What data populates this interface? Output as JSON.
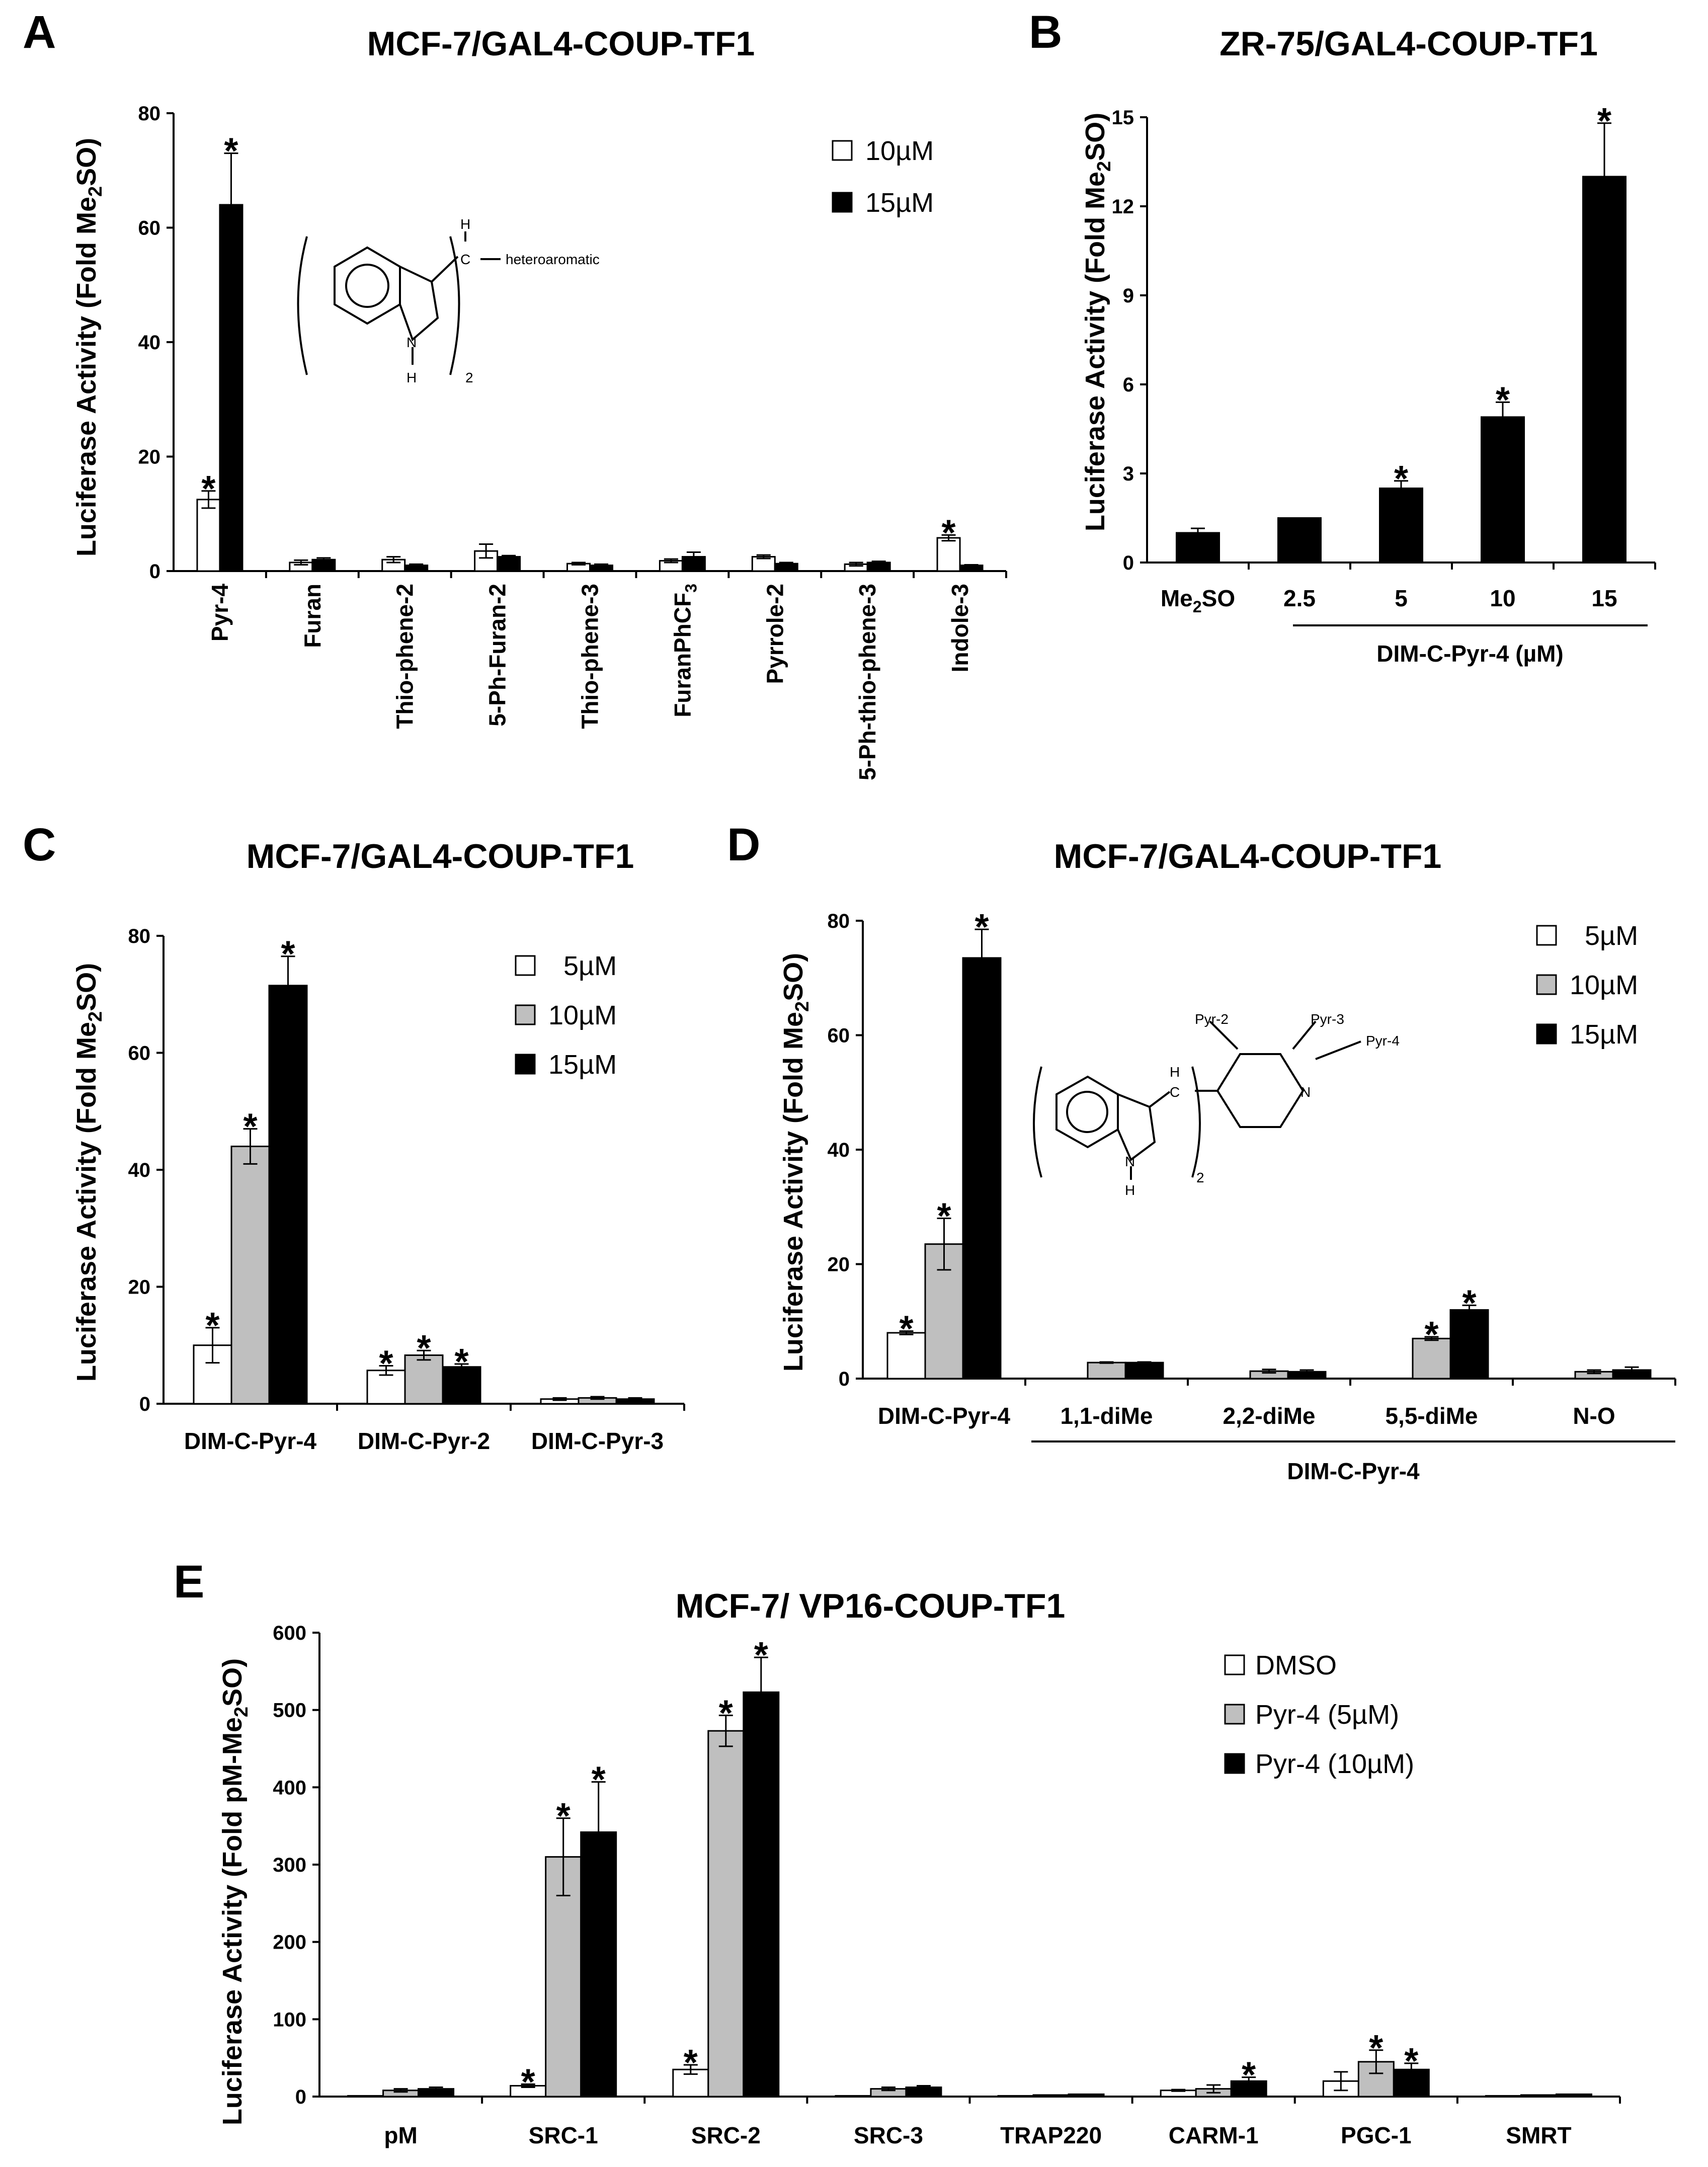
{
  "colors": {
    "white_fill": "#ffffff",
    "gray_fill": "#bfbfbf",
    "black_fill": "#000000",
    "stroke": "#000000"
  },
  "chart_data": [
    {
      "panel": "A",
      "type": "bar",
      "title": "MCF-7/GAL4-COUP-TF1",
      "ylabel": "Luciferase Activity (Fold Me2SO)",
      "ylabel_parts": [
        "Luciferase Activity (Fold Me",
        "2",
        "SO)"
      ],
      "ylim": [
        0,
        80
      ],
      "yticks": [
        0,
        20,
        40,
        60,
        80
      ],
      "categories": [
        "Pyr-4",
        "Furan",
        "Thio-phene-2",
        "5-Ph-Furan-2",
        "Thio-phene-3",
        "FuranPhCF3",
        "Pyrrole-2",
        "5-Ph-thio-phene-3",
        "Indole-3"
      ],
      "legend_position": "top-right",
      "series": [
        {
          "name": "10µM",
          "fill": "white",
          "values": [
            12.5,
            1.5,
            2.0,
            3.5,
            1.3,
            1.8,
            2.5,
            1.2,
            5.8
          ],
          "errors": [
            1.5,
            0.4,
            0.5,
            1.2,
            0.2,
            0.3,
            0.3,
            0.3,
            0.5
          ],
          "significant": [
            true,
            false,
            false,
            false,
            false,
            false,
            false,
            false,
            true
          ]
        },
        {
          "name": "15µM",
          "fill": "black",
          "values": [
            64,
            2.0,
            1.0,
            2.5,
            1.0,
            2.5,
            1.3,
            1.5,
            1.0
          ],
          "errors": [
            9,
            0.3,
            0.2,
            0.2,
            0.2,
            0.8,
            0.2,
            0.2,
            0.1
          ],
          "significant": [
            true,
            false,
            false,
            false,
            false,
            false,
            false,
            false,
            false
          ]
        }
      ],
      "inset": {
        "substituent": "heteroaromatic",
        "atoms": [
          "H",
          "C",
          "N",
          "H",
          "2"
        ]
      }
    },
    {
      "panel": "B",
      "type": "bar",
      "title": "ZR-75/GAL4-COUP-TF1",
      "ylabel": "Luciferase Activity (Fold Me2SO)",
      "ylabel_parts": [
        "Luciferase Activity (Fold Me",
        "2",
        "SO)"
      ],
      "ylim": [
        0,
        15
      ],
      "yticks": [
        0,
        3,
        6,
        9,
        12,
        15
      ],
      "categories": [
        "Me2SO",
        "2.5",
        "5",
        "10",
        "15"
      ],
      "group_label": "DIM-C-Pyr-4 (µM)",
      "series": [
        {
          "name": "DIM-C-Pyr-4",
          "fill": "black",
          "values": [
            1.0,
            1.5,
            2.5,
            4.9,
            13.0
          ],
          "errors": [
            0.15,
            0.0,
            0.25,
            0.5,
            1.8
          ],
          "significant": [
            false,
            false,
            true,
            true,
            true
          ]
        }
      ]
    },
    {
      "panel": "C",
      "type": "bar",
      "title": "MCF-7/GAL4-COUP-TF1",
      "ylabel": "Luciferase Activity (Fold Me2SO)",
      "ylabel_parts": [
        "Luciferase Activity (Fold Me",
        "2",
        "SO)"
      ],
      "ylim": [
        0,
        80
      ],
      "yticks": [
        0,
        20,
        40,
        60,
        80
      ],
      "categories": [
        "DIM-C-Pyr-4",
        "DIM-C-Pyr-2",
        "DIM-C-Pyr-3"
      ],
      "legend_position": "top-right",
      "series": [
        {
          "name": "5µM",
          "fill": "white",
          "values": [
            10,
            5.7,
            0.8
          ],
          "errors": [
            3,
            0.8,
            0.2
          ],
          "significant": [
            true,
            true,
            false
          ]
        },
        {
          "name": "10µM",
          "fill": "gray",
          "values": [
            44,
            8.3,
            1.0
          ],
          "errors": [
            3,
            0.8,
            0.2
          ],
          "significant": [
            true,
            true,
            false
          ]
        },
        {
          "name": "15µM",
          "fill": "black",
          "values": [
            71.5,
            6.3,
            0.8
          ],
          "errors": [
            5,
            0.5,
            0.2
          ],
          "significant": [
            true,
            true,
            false
          ]
        }
      ]
    },
    {
      "panel": "D",
      "type": "bar",
      "title": "MCF-7/GAL4-COUP-TF1",
      "ylabel": "Luciferase Activity (Fold Me2SO)",
      "ylabel_parts": [
        "Luciferase Activity (Fold Me",
        "2",
        "SO)"
      ],
      "ylim": [
        0,
        80
      ],
      "yticks": [
        0,
        20,
        40,
        60,
        80
      ],
      "categories": [
        "DIM-C-Pyr-4",
        "1,1-diMe",
        "2,2-diMe",
        "5,5-diMe",
        "N-O"
      ],
      "group_label": "DIM-C-Pyr-4",
      "legend_position": "top-right",
      "series": [
        {
          "name": "5µM",
          "fill": "white",
          "values": [
            8,
            null,
            null,
            null,
            null
          ],
          "errors": [
            0.3,
            null,
            null,
            null,
            null
          ],
          "significant": [
            true,
            false,
            false,
            false,
            false
          ]
        },
        {
          "name": "10µM",
          "fill": "gray",
          "values": [
            23.5,
            2.8,
            1.3,
            7.0,
            1.2
          ],
          "errors": [
            4.5,
            0.1,
            0.3,
            0.3,
            0.3
          ],
          "significant": [
            true,
            false,
            false,
            true,
            false
          ]
        },
        {
          "name": "15µM",
          "fill": "black",
          "values": [
            73.5,
            2.8,
            1.2,
            12.0,
            1.5
          ],
          "errors": [
            5,
            0.1,
            0.3,
            0.8,
            0.5
          ],
          "significant": [
            true,
            false,
            false,
            true,
            false
          ]
        }
      ],
      "inset": {
        "labels": [
          "Pyr-2",
          "Pyr-3",
          "Pyr-4"
        ],
        "atoms": [
          "H",
          "C",
          "N",
          "N",
          "H",
          "2"
        ]
      }
    },
    {
      "panel": "E",
      "type": "bar",
      "title": "MCF-7/ VP16-COUP-TF1",
      "ylabel": "Luciferase Activity (Fold pM-Me2SO)",
      "ylabel_parts": [
        "Luciferase Activity (Fold pM-Me",
        "2",
        "SO)"
      ],
      "ylim": [
        0,
        600
      ],
      "yticks": [
        0,
        100,
        200,
        300,
        400,
        500,
        600
      ],
      "categories": [
        "pM",
        "SRC-1",
        "SRC-2",
        "SRC-3",
        "TRAP220",
        "CARM-1",
        "PGC-1",
        "SMRT"
      ],
      "legend_position": "top-right",
      "series": [
        {
          "name": "DMSO",
          "fill": "white",
          "values": [
            1,
            14,
            35,
            1,
            1,
            8,
            20,
            1
          ],
          "errors": [
            0,
            2,
            6,
            0,
            0,
            1,
            12,
            0
          ],
          "significant": [
            false,
            true,
            true,
            false,
            false,
            false,
            false,
            false
          ]
        },
        {
          "name": "Pyr-4 (5µM)",
          "fill": "gray",
          "values": [
            8,
            310,
            473,
            10,
            2,
            10,
            45,
            2
          ],
          "errors": [
            2,
            50,
            20,
            2,
            0,
            5,
            15,
            0
          ],
          "significant": [
            false,
            true,
            true,
            false,
            false,
            false,
            true,
            false
          ]
        },
        {
          "name": "Pyr-4 (10µM)",
          "fill": "black",
          "values": [
            10,
            342,
            523,
            12,
            3,
            20,
            35,
            3
          ],
          "errors": [
            2,
            65,
            45,
            2,
            0,
            5,
            8,
            0
          ],
          "significant": [
            false,
            true,
            true,
            false,
            false,
            true,
            true,
            false
          ]
        }
      ]
    }
  ]
}
